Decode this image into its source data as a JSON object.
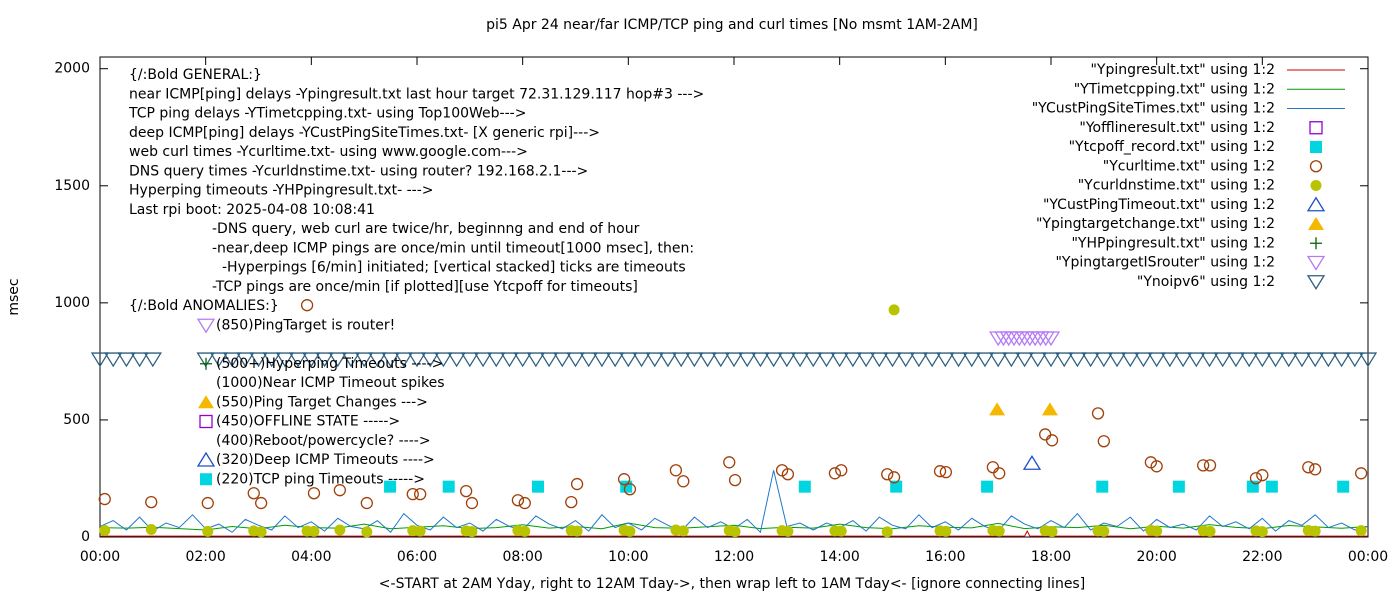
{
  "chart_data": {
    "type": "line",
    "title": "pi5 Apr 24  near/far ICMP/TCP ping and curl times [No msmt 1AM-2AM]",
    "xlabel": "<-START at 2AM Yday, right to 12AM Tday->, then wrap left to 1AM Tday<- [ignore connecting lines]",
    "ylabel": "msec",
    "xlim": [
      0,
      24
    ],
    "ylim": [
      0,
      2050
    ],
    "xticks": [
      {
        "value": 0,
        "label": "00:00"
      },
      {
        "value": 2,
        "label": "02:00"
      },
      {
        "value": 4,
        "label": "04:00"
      },
      {
        "value": 6,
        "label": "06:00"
      },
      {
        "value": 8,
        "label": "08:00"
      },
      {
        "value": 10,
        "label": "10:00"
      },
      {
        "value": 12,
        "label": "12:00"
      },
      {
        "value": 14,
        "label": "14:00"
      },
      {
        "value": 16,
        "label": "16:00"
      },
      {
        "value": 18,
        "label": "18:00"
      },
      {
        "value": 20,
        "label": "20:00"
      },
      {
        "value": 22,
        "label": "22:00"
      },
      {
        "value": 24,
        "label": "00:00"
      }
    ],
    "yticks": [
      0,
      500,
      1000,
      1500,
      2000
    ],
    "grid": false,
    "legend": "upper right",
    "annotations": [
      "{/:Bold GENERAL:}",
      "near ICMP[ping] delays -Ypingresult.txt last hour target 72.31.129.117 hop#3 --->",
      "TCP ping delays -YTimetcpping.txt- using Top100Web--->",
      "deep ICMP[ping] delays -YCustPingSiteTimes.txt- [X generic rpi]--->",
      "web curl times -Ycurltime.txt- using www.google.com--->",
      "DNS query times -Ycurldnstime.txt- using router? 192.168.2.1--->",
      "Hyperping timeouts -YHPpingresult.txt- --->",
      "Last rpi boot: 2025-04-08 10:08:41",
      "-DNS query, web curl are twice/hr, beginnng and end of hour",
      "-near,deep ICMP pings are once/min until timeout[1000 msec], then:",
      "-Hyperpings [6/min] initiated; [vertical stacked] ticks are timeouts",
      "-TCP pings are once/min [if plotted][use Ytcpoff for timeouts]",
      "{/:Bold ANOMALIES:}"
    ],
    "anomalies": [
      "(850)PingTarget is router!",
      "(500+)Hyperping Timeouts ---->",
      "(1000)Near ICMP Timeout spikes",
      "(550)Ping Target Changes --->",
      "(450)OFFLINE STATE ----->",
      "(400)Reboot/powercycle? ---->",
      "(320)Deep ICMP Timeouts ---->",
      "(220)TCP ping Timeouts ----->"
    ],
    "x": [
      0,
      0.25,
      0.5,
      0.75,
      1,
      1.25,
      1.5,
      1.75,
      2,
      2.25,
      2.5,
      2.75,
      3,
      3.25,
      3.5,
      3.75,
      4,
      4.25,
      4.5,
      4.75,
      5,
      5.25,
      5.5,
      5.75,
      6,
      6.25,
      6.5,
      6.75,
      7,
      7.25,
      7.5,
      7.75,
      8,
      8.25,
      8.5,
      8.75,
      9,
      9.25,
      9.5,
      9.75,
      10,
      10.25,
      10.5,
      10.75,
      11,
      11.25,
      11.5,
      11.75,
      12,
      12.25,
      12.5,
      12.75,
      13,
      13.25,
      13.5,
      13.75,
      14,
      14.25,
      14.5,
      14.75,
      15,
      15.25,
      15.5,
      15.75,
      16,
      16.25,
      16.5,
      16.75,
      17,
      17.25,
      17.5,
      17.75,
      18,
      18.25,
      18.5,
      18.75,
      19,
      19.25,
      19.5,
      19.75,
      20,
      20.25,
      20.5,
      20.75,
      21,
      21.25,
      21.5,
      21.75,
      22,
      22.25,
      22.5,
      22.75,
      23,
      23.25,
      23.5,
      23.75,
      24
    ],
    "series": [
      {
        "name": "\"Ypingresult.txt\" using 1:2",
        "color": "#cc0000",
        "style": "line",
        "x": [
          0,
          8,
          16,
          17.5,
          17.55,
          17.6,
          24
        ],
        "values": [
          4,
          4,
          4,
          4,
          25,
          4,
          4
        ]
      },
      {
        "name": "\"YTimetcpping.txt\" using 1:2",
        "color": "#009e00",
        "style": "line",
        "x": [
          0,
          0.5,
          1,
          1.5,
          2,
          2.5,
          3,
          3.5,
          4,
          4.5,
          5,
          5.5,
          6,
          6.5,
          7,
          7.5,
          8,
          8.5,
          9,
          9.5,
          10,
          10.5,
          11,
          11.5,
          12,
          12.5,
          13,
          13.5,
          14,
          14.5,
          15,
          15.5,
          16,
          16.5,
          17,
          17.5,
          18,
          18.5,
          19,
          19.5,
          20,
          20.5,
          21,
          21.5,
          22,
          22.5,
          23,
          23.5,
          24
        ],
        "values": [
          40,
          38,
          42,
          36,
          30,
          45,
          35,
          50,
          40,
          38,
          55,
          35,
          42,
          48,
          36,
          40,
          52,
          38,
          45,
          35,
          60,
          40,
          37,
          44,
          50,
          36,
          42,
          38,
          55,
          40,
          35,
          48,
          42,
          39,
          58,
          36,
          44,
          40,
          50,
          35,
          46,
          38,
          53,
          41,
          36,
          49,
          43,
          37,
          45
        ]
      },
      {
        "name": "\"YCustPingSiteTimes.txt\" using 1:2",
        "color": "#1f78c8",
        "style": "line",
        "values": [
          45,
          70,
          30,
          85,
          25,
          60,
          40,
          95,
          35,
          55,
          20,
          75,
          50,
          30,
          90,
          40,
          65,
          25,
          80,
          45,
          35,
          70,
          20,
          100,
          50,
          30,
          85,
          40,
          60,
          25,
          75,
          45,
          30,
          90,
          55,
          35,
          70,
          25,
          95,
          40,
          60,
          30,
          80,
          50,
          25,
          85,
          40,
          65,
          35,
          75,
          20,
          285,
          45,
          60,
          30,
          60,
          40,
          70,
          25,
          85,
          50,
          35,
          95,
          40,
          65,
          30,
          80,
          45,
          25,
          90,
          55,
          35,
          70,
          40,
          100,
          30,
          60,
          45,
          85,
          25,
          75,
          40,
          55,
          30,
          90,
          45,
          65,
          35,
          80,
          25,
          70,
          50,
          95,
          40,
          60,
          30,
          45
        ]
      },
      {
        "name": "\"Yofflineresult.txt\" using 1:2",
        "color": "#9400d3",
        "style": "square-open",
        "x": [],
        "values": []
      },
      {
        "name": "\"Ytcpoff_record.txt\" using 1:2",
        "color": "#00d5e0",
        "style": "square",
        "x": [
          5.49,
          6.6,
          8.29,
          9.96,
          13.34,
          15.07,
          16.79,
          18.97,
          20.42,
          21.82,
          22.18,
          23.53
        ],
        "values": [
          215,
          215,
          215,
          215,
          215,
          215,
          215,
          215,
          215,
          215,
          215,
          215
        ]
      },
      {
        "name": "\"Ycurltime.txt\" using 1:2",
        "color": "#a0400a",
        "style": "circle-open",
        "x": [
          0.09,
          0.97,
          2.04,
          2.91,
          3.05,
          3.92,
          4.05,
          4.54,
          5.05,
          5.92,
          6.06,
          6.93,
          7.04,
          7.91,
          8.04,
          8.92,
          9.03,
          9.92,
          10.03,
          10.9,
          11.04,
          11.91,
          12.02,
          12.91,
          13.02,
          13.91,
          14.03,
          14.9,
          15.03,
          15.9,
          16.01,
          16.9,
          17.02,
          17.89,
          18.02,
          18.89,
          19.0,
          19.89,
          20.0,
          20.88,
          21.01,
          21.88,
          22.0,
          22.87,
          23.0,
          23.87
        ],
        "values": [
          162,
          149,
          145,
          187,
          145,
          990,
          187,
          200,
          145,
          183,
          183,
          196,
          145,
          157,
          145,
          149,
          226,
          247,
          204,
          285,
          238,
          319,
          243,
          285,
          268,
          272,
          285,
          268,
          255,
          281,
          277,
          298,
          272,
          438,
          413,
          528,
          409,
          319,
          302,
          306,
          306,
          251,
          264,
          298,
          289,
          272
        ]
      },
      {
        "name": "\"Ycurldnstime.txt\" using 1:2",
        "color": "#b8c400",
        "style": "circle",
        "x": [
          0.09,
          0.97,
          2.04,
          2.91,
          3.05,
          3.92,
          4.05,
          4.54,
          5.05,
          5.92,
          6.06,
          6.93,
          7.04,
          7.91,
          8.04,
          8.92,
          9.03,
          9.92,
          10.03,
          10.9,
          11.04,
          11.91,
          12.02,
          12.91,
          13.02,
          13.91,
          14.03,
          14.9,
          15.03,
          15.9,
          16.01,
          16.9,
          17.02,
          17.89,
          18.02,
          18.89,
          19.0,
          19.89,
          20.0,
          20.88,
          21.01,
          21.88,
          22.0,
          22.87,
          23.0,
          23.87
        ],
        "values": [
          28,
          32,
          24,
          26,
          22,
          25,
          24,
          30,
          22,
          27,
          25,
          26,
          23,
          28,
          24,
          27,
          25,
          29,
          24,
          30,
          26,
          28,
          23,
          27,
          24,
          26,
          25,
          22,
          970,
          26,
          24,
          28,
          25,
          27,
          23,
          26,
          24,
          29,
          25,
          27,
          24,
          26,
          23,
          28,
          25,
          27
        ]
      },
      {
        "name": "\"YCustPingTimeout.txt\" using 1:2",
        "color": "#1f50c8",
        "style": "triangle-open",
        "x": [
          17.64
        ],
        "values": [
          315
        ]
      },
      {
        "name": "\"Ypingtargetchange.txt\" using 1:2",
        "color": "#f5b800",
        "style": "triangle",
        "x": [
          16.98,
          17.98
        ],
        "values": [
          545,
          545
        ]
      },
      {
        "name": "\"YHPpingresult.txt\" using 1:2",
        "color": "#006400",
        "style": "plus",
        "x": [],
        "values": []
      },
      {
        "name": "\"YpingtargetISrouter\" using 1:2",
        "color": "#b57cf5",
        "style": "triangle-down-open",
        "x": [
          17.0,
          17.1,
          17.2,
          17.3,
          17.4,
          17.5,
          17.6,
          17.7,
          17.8,
          17.9,
          18.0
        ],
        "values": [
          850,
          850,
          850,
          850,
          850,
          850,
          850,
          850,
          850,
          850,
          850
        ]
      },
      {
        "name": "\"Ynoipv6\" using 1:2",
        "color": "#2e5f80",
        "style": "triangle-down-open",
        "values": [
          760,
          760,
          760,
          760,
          760,
          null,
          null,
          null,
          760,
          760,
          760,
          760,
          760,
          760,
          760,
          760,
          760,
          760,
          760,
          760,
          760,
          760,
          760,
          760,
          760,
          760,
          760,
          760,
          760,
          760,
          760,
          760,
          760,
          760,
          760,
          760,
          760,
          760,
          760,
          760,
          760,
          760,
          760,
          760,
          760,
          760,
          760,
          760,
          760,
          760,
          760,
          760,
          760,
          760,
          760,
          760,
          760,
          760,
          760,
          760,
          760,
          760,
          760,
          760,
          760,
          760,
          760,
          760,
          760,
          760,
          760,
          760,
          760,
          760,
          760,
          760,
          760,
          760,
          760,
          760,
          760,
          760,
          760,
          760,
          760,
          760,
          760,
          760,
          760,
          760,
          760,
          760,
          760,
          760,
          760,
          760,
          760
        ]
      }
    ]
  }
}
